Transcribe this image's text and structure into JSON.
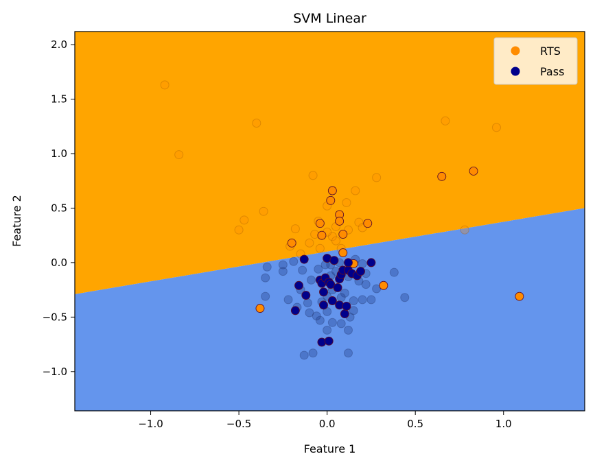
{
  "chart_data": {
    "type": "scatter",
    "title": "SVM Linear",
    "xlabel": "Feature 1",
    "ylabel": "Feature 2",
    "xlim": [
      -1.43,
      1.46
    ],
    "ylim": [
      -1.36,
      2.12
    ],
    "xticks": [
      -1.0,
      -0.5,
      0.0,
      0.5,
      1.0
    ],
    "xtick_labels": [
      "−1.0",
      "−0.5",
      "0.0",
      "0.5",
      "1.0"
    ],
    "yticks": [
      -1.0,
      -0.5,
      0.0,
      0.5,
      1.0,
      1.5,
      2.0
    ],
    "ytick_labels": [
      "−1.0",
      "−0.5",
      "0.0",
      "0.5",
      "1.0",
      "1.5",
      "2.0"
    ],
    "grid": false,
    "legend_position": "top-right",
    "decision_boundary": {
      "line": [
        [
          -1.43,
          -0.29
        ],
        [
          1.46,
          0.5
        ]
      ],
      "above_label": "RTS",
      "below_label": "Pass",
      "above_color": "#ffa500",
      "below_color": "#6495ed"
    },
    "series": [
      {
        "name": "RTS",
        "color": "#ff8c00",
        "points": [
          [
            -0.38,
            -0.42
          ],
          [
            -0.2,
            0.18
          ],
          [
            -0.04,
            0.36
          ],
          [
            -0.03,
            0.25
          ],
          [
            0.02,
            0.57
          ],
          [
            0.03,
            0.66
          ],
          [
            0.07,
            0.44
          ],
          [
            0.07,
            0.38
          ],
          [
            0.09,
            0.26
          ],
          [
            0.09,
            0.09
          ],
          [
            0.15,
            -0.01
          ],
          [
            0.23,
            0.36
          ],
          [
            0.32,
            -0.21
          ],
          [
            0.65,
            0.79
          ],
          [
            0.83,
            0.84
          ],
          [
            1.09,
            -0.31
          ]
        ]
      },
      {
        "name": "Pass",
        "color": "#00008b",
        "points": [
          [
            -0.18,
            -0.44
          ],
          [
            -0.16,
            -0.21
          ],
          [
            -0.13,
            0.03
          ],
          [
            -0.12,
            -0.3
          ],
          [
            -0.04,
            -0.16
          ],
          [
            -0.03,
            -0.19
          ],
          [
            -0.02,
            -0.27
          ],
          [
            -0.02,
            -0.39
          ],
          [
            -0.01,
            -0.14
          ],
          [
            -0.03,
            -0.73
          ],
          [
            0.0,
            0.04
          ],
          [
            0.01,
            -0.72
          ],
          [
            0.01,
            -0.18
          ],
          [
            0.02,
            -0.2
          ],
          [
            0.03,
            -0.35
          ],
          [
            0.04,
            0.02
          ],
          [
            0.06,
            -0.23
          ],
          [
            0.07,
            -0.15
          ],
          [
            0.07,
            -0.39
          ],
          [
            0.08,
            -0.11
          ],
          [
            0.09,
            -0.07
          ],
          [
            0.1,
            -0.47
          ],
          [
            0.11,
            -0.4
          ],
          [
            0.12,
            -0.07
          ],
          [
            0.12,
            0.0
          ],
          [
            0.14,
            -0.1
          ],
          [
            0.17,
            -0.12
          ],
          [
            0.19,
            -0.08
          ],
          [
            0.25,
            0.0
          ]
        ]
      }
    ],
    "faded_rts": [
      [
        -0.92,
        1.63
      ],
      [
        -0.84,
        0.99
      ],
      [
        -0.4,
        1.28
      ],
      [
        -0.5,
        0.3
      ],
      [
        -0.47,
        0.39
      ],
      [
        -0.36,
        0.47
      ],
      [
        -0.18,
        0.31
      ],
      [
        -0.21,
        0.15
      ],
      [
        -0.15,
        0.08
      ],
      [
        -0.08,
        0.8
      ],
      [
        -0.07,
        0.26
      ],
      [
        -0.04,
        0.13
      ],
      [
        0.0,
        0.52
      ],
      [
        0.03,
        0.24
      ],
      [
        0.05,
        0.33
      ],
      [
        0.08,
        0.13
      ],
      [
        0.11,
        0.55
      ],
      [
        0.12,
        0.3
      ],
      [
        0.16,
        0.66
      ],
      [
        0.18,
        0.37
      ],
      [
        0.2,
        0.32
      ],
      [
        0.28,
        0.78
      ],
      [
        0.67,
        1.3
      ],
      [
        0.96,
        1.24
      ],
      [
        0.78,
        0.3
      ],
      [
        -0.05,
        0.38
      ],
      [
        0.0,
        0.28
      ],
      [
        -0.1,
        0.18
      ],
      [
        0.05,
        0.2
      ]
    ],
    "faded_pass": [
      [
        -0.35,
        -0.31
      ],
      [
        -0.34,
        -0.04
      ],
      [
        -0.35,
        -0.14
      ],
      [
        -0.25,
        -0.08
      ],
      [
        -0.25,
        -0.02
      ],
      [
        -0.19,
        0.01
      ],
      [
        -0.22,
        -0.34
      ],
      [
        -0.15,
        -0.25
      ],
      [
        -0.1,
        -0.46
      ],
      [
        -0.13,
        -0.85
      ],
      [
        -0.08,
        -0.83
      ],
      [
        -0.04,
        -0.53
      ],
      [
        -0.03,
        -0.36
      ],
      [
        0.0,
        -0.62
      ],
      [
        0.0,
        -0.45
      ],
      [
        0.02,
        -0.12
      ],
      [
        0.03,
        -0.25
      ],
      [
        0.05,
        -0.08
      ],
      [
        0.08,
        -0.56
      ],
      [
        0.1,
        -0.28
      ],
      [
        0.12,
        -0.13
      ],
      [
        0.13,
        -0.5
      ],
      [
        0.15,
        -0.35
      ],
      [
        0.18,
        -0.17
      ],
      [
        0.2,
        -0.34
      ],
      [
        0.22,
        -0.1
      ],
      [
        0.25,
        -0.34
      ],
      [
        0.28,
        -0.24
      ],
      [
        0.38,
        -0.09
      ],
      [
        0.44,
        -0.32
      ],
      [
        0.12,
        -0.83
      ],
      [
        0.12,
        -0.62
      ],
      [
        -0.14,
        -0.07
      ],
      [
        -0.09,
        -0.16
      ],
      [
        0.07,
        0.0
      ],
      [
        0.16,
        0.03
      ],
      [
        -0.05,
        -0.06
      ],
      [
        0.02,
        -0.02
      ],
      [
        0.22,
        -0.2
      ],
      [
        -0.01,
        -0.02
      ],
      [
        0.0,
        -0.31
      ],
      [
        0.08,
        -0.32
      ],
      [
        -0.06,
        -0.49
      ],
      [
        0.03,
        -0.55
      ],
      [
        0.15,
        -0.44
      ],
      [
        0.2,
        -0.01
      ],
      [
        -0.17,
        -0.41
      ],
      [
        -0.11,
        -0.37
      ]
    ]
  }
}
